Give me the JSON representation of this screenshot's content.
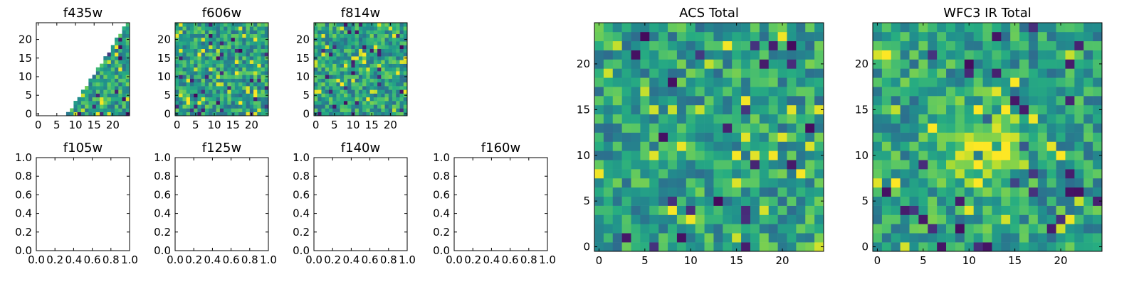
{
  "figure": {
    "colormap": "viridis",
    "background": "#ffffff"
  },
  "chart_data": [
    {
      "type": "heatmap",
      "title": "f435w",
      "grid": [
        25,
        25
      ],
      "xlim": [
        -0.5,
        24.5
      ],
      "ylim": [
        -0.5,
        24.5
      ],
      "xticks": [
        "0",
        "5",
        "10",
        "15",
        "20"
      ],
      "yticks": [
        "0",
        "5",
        "10",
        "15",
        "20"
      ],
      "masked_region": "upper-left triangle (no coverage)",
      "values": "25x25 pixel intensity map, values approx. in [0, 1]"
    },
    {
      "type": "heatmap",
      "title": "f606w",
      "grid": [
        25,
        25
      ],
      "xlim": [
        -0.5,
        24.5
      ],
      "ylim": [
        -0.5,
        24.5
      ],
      "xticks": [
        "0",
        "5",
        "10",
        "15",
        "20"
      ],
      "yticks": [
        "0",
        "5",
        "10",
        "15",
        "20"
      ],
      "values": "25x25 pixel intensity map, values approx. in [0, 1]"
    },
    {
      "type": "heatmap",
      "title": "f814w",
      "grid": [
        25,
        25
      ],
      "xlim": [
        -0.5,
        24.5
      ],
      "ylim": [
        -0.5,
        24.5
      ],
      "xticks": [
        "0",
        "5",
        "10",
        "15",
        "20"
      ],
      "yticks": [
        "0",
        "5",
        "10",
        "15",
        "20"
      ],
      "values": "25x25 pixel intensity map, values approx. in [0, 1]"
    },
    {
      "type": "empty",
      "title": "f105w",
      "xlim": [
        0,
        1
      ],
      "ylim": [
        0,
        1
      ],
      "xticks": [
        "0.0",
        "0.2",
        "0.4",
        "0.6",
        "0.8",
        "1.0"
      ],
      "yticks": [
        "0.0",
        "0.2",
        "0.4",
        "0.6",
        "0.8",
        "1.0"
      ]
    },
    {
      "type": "empty",
      "title": "f125w",
      "xlim": [
        0,
        1
      ],
      "ylim": [
        0,
        1
      ],
      "xticks": [
        "0.0",
        "0.2",
        "0.4",
        "0.6",
        "0.8",
        "1.0"
      ],
      "yticks": [
        "0.0",
        "0.2",
        "0.4",
        "0.6",
        "0.8",
        "1.0"
      ]
    },
    {
      "type": "empty",
      "title": "f140w",
      "xlim": [
        0,
        1
      ],
      "ylim": [
        0,
        1
      ],
      "xticks": [
        "0.0",
        "0.2",
        "0.4",
        "0.6",
        "0.8",
        "1.0"
      ],
      "yticks": [
        "0.0",
        "0.2",
        "0.4",
        "0.6",
        "0.8",
        "1.0"
      ]
    },
    {
      "type": "empty",
      "title": "f160w",
      "xlim": [
        0,
        1
      ],
      "ylim": [
        0,
        1
      ],
      "xticks": [
        "0.0",
        "0.2",
        "0.4",
        "0.6",
        "0.8",
        "1.0"
      ],
      "yticks": [
        "0.0",
        "0.2",
        "0.4",
        "0.6",
        "0.8",
        "1.0"
      ]
    },
    {
      "type": "heatmap",
      "title": "ACS Total",
      "grid": [
        25,
        25
      ],
      "xlim": [
        -0.5,
        24.5
      ],
      "ylim": [
        -0.5,
        24.5
      ],
      "xticks": [
        "0",
        "5",
        "10",
        "15",
        "20"
      ],
      "yticks": [
        "0",
        "5",
        "10",
        "15",
        "20"
      ],
      "values": "25x25 pixel intensity map, values approx. in [0, 1]"
    },
    {
      "type": "heatmap",
      "title": "WFC3 IR Total",
      "grid": [
        25,
        25
      ],
      "xlim": [
        -0.5,
        24.5
      ],
      "ylim": [
        -0.5,
        24.5
      ],
      "xticks": [
        "0",
        "5",
        "10",
        "15",
        "20"
      ],
      "yticks": [
        "0",
        "5",
        "10",
        "15",
        "20"
      ],
      "values": "25x25 pixel intensity map, brighter blob near center (x≈12, y≈11)"
    }
  ]
}
